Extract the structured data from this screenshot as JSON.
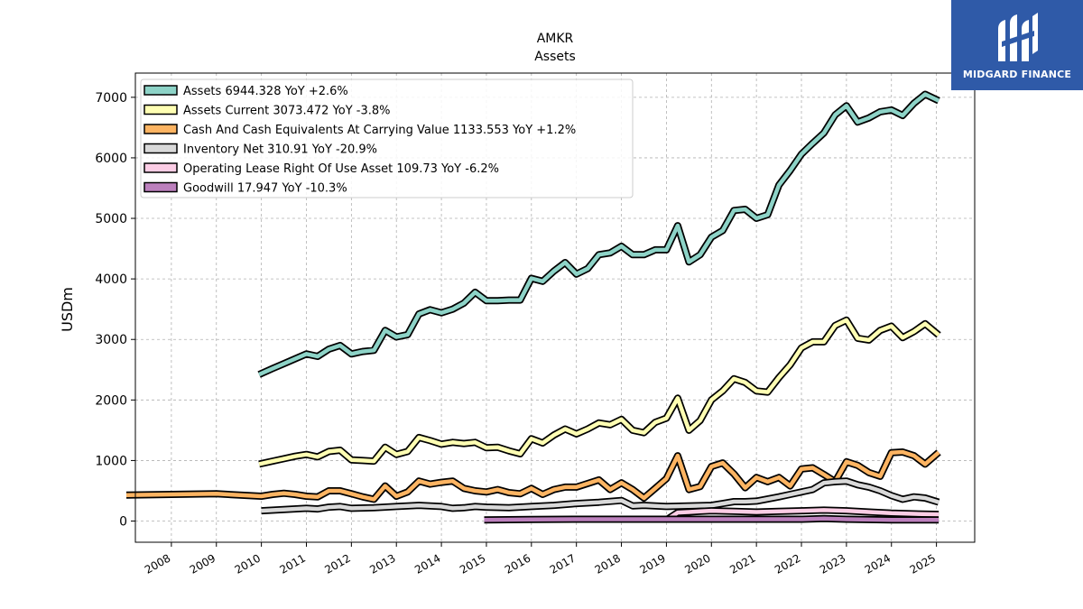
{
  "chart_data": {
    "type": "line",
    "title": "AMKR",
    "subtitle": "Assets",
    "ylabel": "USDm",
    "xlabel": "",
    "ylim": [
      -350,
      7400
    ],
    "xlim": [
      2007.2,
      2025.85
    ],
    "yticks": [
      0,
      1000,
      2000,
      3000,
      4000,
      5000,
      6000,
      7000
    ],
    "xticks": [
      2008,
      2009,
      2010,
      2011,
      2012,
      2013,
      2014,
      2015,
      2016,
      2017,
      2018,
      2019,
      2020,
      2021,
      2022,
      2023,
      2024,
      2025
    ],
    "grid": true,
    "legend_position": "top-left",
    "series": [
      {
        "name": "Assets",
        "legend_label": "Assets  6944.328 YoY +2.6%",
        "color": "#8dd3c7",
        "points": [
          [
            2009.95,
            2420
          ],
          [
            2010.25,
            2520
          ],
          [
            2010.5,
            2600
          ],
          [
            2010.75,
            2680
          ],
          [
            2011.0,
            2760
          ],
          [
            2011.25,
            2720
          ],
          [
            2011.5,
            2840
          ],
          [
            2011.75,
            2900
          ],
          [
            2012.0,
            2760
          ],
          [
            2012.25,
            2800
          ],
          [
            2012.5,
            2820
          ],
          [
            2012.75,
            3150
          ],
          [
            2013.0,
            3040
          ],
          [
            2013.25,
            3080
          ],
          [
            2013.5,
            3420
          ],
          [
            2013.75,
            3490
          ],
          [
            2014.0,
            3440
          ],
          [
            2014.25,
            3500
          ],
          [
            2014.5,
            3600
          ],
          [
            2014.75,
            3780
          ],
          [
            2015.0,
            3640
          ],
          [
            2015.25,
            3640
          ],
          [
            2015.5,
            3650
          ],
          [
            2015.75,
            3650
          ],
          [
            2016.0,
            4010
          ],
          [
            2016.25,
            3960
          ],
          [
            2016.5,
            4130
          ],
          [
            2016.75,
            4270
          ],
          [
            2017.0,
            4080
          ],
          [
            2017.25,
            4170
          ],
          [
            2017.5,
            4400
          ],
          [
            2017.75,
            4430
          ],
          [
            2018.0,
            4540
          ],
          [
            2018.25,
            4400
          ],
          [
            2018.5,
            4400
          ],
          [
            2018.75,
            4480
          ],
          [
            2019.0,
            4480
          ],
          [
            2019.25,
            4880
          ],
          [
            2019.5,
            4280
          ],
          [
            2019.75,
            4400
          ],
          [
            2020.0,
            4690
          ],
          [
            2020.25,
            4800
          ],
          [
            2020.5,
            5130
          ],
          [
            2020.75,
            5150
          ],
          [
            2021.0,
            5000
          ],
          [
            2021.25,
            5060
          ],
          [
            2021.5,
            5550
          ],
          [
            2021.75,
            5790
          ],
          [
            2022.0,
            6060
          ],
          [
            2022.25,
            6240
          ],
          [
            2022.5,
            6410
          ],
          [
            2022.75,
            6710
          ],
          [
            2023.0,
            6860
          ],
          [
            2023.25,
            6590
          ],
          [
            2023.5,
            6660
          ],
          [
            2023.75,
            6760
          ],
          [
            2024.0,
            6790
          ],
          [
            2024.25,
            6700
          ],
          [
            2024.5,
            6900
          ],
          [
            2024.75,
            7050
          ],
          [
            2025.05,
            6944
          ]
        ]
      },
      {
        "name": "Assets Current",
        "legend_label": "Assets Current  3073.472 YoY -3.8%",
        "color": "#ffffb3",
        "points": [
          [
            2009.95,
            940
          ],
          [
            2010.25,
            990
          ],
          [
            2010.5,
            1030
          ],
          [
            2010.75,
            1070
          ],
          [
            2011.0,
            1100
          ],
          [
            2011.25,
            1060
          ],
          [
            2011.5,
            1150
          ],
          [
            2011.75,
            1170
          ],
          [
            2012.0,
            1010
          ],
          [
            2012.25,
            1000
          ],
          [
            2012.5,
            990
          ],
          [
            2012.75,
            1220
          ],
          [
            2013.0,
            1100
          ],
          [
            2013.25,
            1150
          ],
          [
            2013.5,
            1380
          ],
          [
            2013.75,
            1330
          ],
          [
            2014.0,
            1270
          ],
          [
            2014.25,
            1300
          ],
          [
            2014.5,
            1280
          ],
          [
            2014.75,
            1300
          ],
          [
            2015.0,
            1210
          ],
          [
            2015.25,
            1220
          ],
          [
            2015.5,
            1160
          ],
          [
            2015.75,
            1110
          ],
          [
            2016.0,
            1360
          ],
          [
            2016.25,
            1290
          ],
          [
            2016.5,
            1420
          ],
          [
            2016.75,
            1520
          ],
          [
            2017.0,
            1440
          ],
          [
            2017.25,
            1520
          ],
          [
            2017.5,
            1620
          ],
          [
            2017.75,
            1590
          ],
          [
            2018.0,
            1680
          ],
          [
            2018.25,
            1500
          ],
          [
            2018.5,
            1460
          ],
          [
            2018.75,
            1630
          ],
          [
            2019.0,
            1700
          ],
          [
            2019.25,
            2030
          ],
          [
            2019.5,
            1500
          ],
          [
            2019.75,
            1660
          ],
          [
            2020.0,
            2000
          ],
          [
            2020.25,
            2150
          ],
          [
            2020.5,
            2350
          ],
          [
            2020.75,
            2290
          ],
          [
            2021.0,
            2150
          ],
          [
            2021.25,
            2130
          ],
          [
            2021.5,
            2370
          ],
          [
            2021.75,
            2580
          ],
          [
            2022.0,
            2860
          ],
          [
            2022.25,
            2960
          ],
          [
            2022.5,
            2960
          ],
          [
            2022.75,
            3230
          ],
          [
            2023.0,
            3320
          ],
          [
            2023.25,
            3020
          ],
          [
            2023.5,
            2990
          ],
          [
            2023.75,
            3150
          ],
          [
            2024.0,
            3220
          ],
          [
            2024.25,
            3030
          ],
          [
            2024.5,
            3130
          ],
          [
            2024.75,
            3260
          ],
          [
            2025.05,
            3073
          ]
        ]
      },
      {
        "name": "Cash And Cash Equivalents At Carrying Value",
        "legend_label": "Cash And Cash Equivalents At Carrying Value  1133.553 YoY +1.2%",
        "color": "#fdb462",
        "points": [
          [
            2007.0,
            430
          ],
          [
            2008.0,
            440
          ],
          [
            2009.0,
            450
          ],
          [
            2010.0,
            410
          ],
          [
            2010.25,
            440
          ],
          [
            2010.5,
            460
          ],
          [
            2010.75,
            440
          ],
          [
            2011.0,
            410
          ],
          [
            2011.25,
            400
          ],
          [
            2011.5,
            500
          ],
          [
            2011.75,
            500
          ],
          [
            2012.0,
            450
          ],
          [
            2012.25,
            400
          ],
          [
            2012.5,
            360
          ],
          [
            2012.75,
            580
          ],
          [
            2013.0,
            410
          ],
          [
            2013.25,
            480
          ],
          [
            2013.5,
            660
          ],
          [
            2013.75,
            610
          ],
          [
            2014.0,
            640
          ],
          [
            2014.25,
            660
          ],
          [
            2014.5,
            540
          ],
          [
            2014.75,
            500
          ],
          [
            2015.0,
            480
          ],
          [
            2015.25,
            520
          ],
          [
            2015.5,
            470
          ],
          [
            2015.75,
            450
          ],
          [
            2016.0,
            540
          ],
          [
            2016.25,
            440
          ],
          [
            2016.5,
            520
          ],
          [
            2016.75,
            560
          ],
          [
            2017.0,
            560
          ],
          [
            2017.25,
            620
          ],
          [
            2017.5,
            680
          ],
          [
            2017.75,
            520
          ],
          [
            2018.0,
            630
          ],
          [
            2018.25,
            520
          ],
          [
            2018.5,
            380
          ],
          [
            2018.75,
            540
          ],
          [
            2019.0,
            700
          ],
          [
            2019.25,
            1080
          ],
          [
            2019.5,
            520
          ],
          [
            2019.75,
            570
          ],
          [
            2020.0,
            900
          ],
          [
            2020.25,
            960
          ],
          [
            2020.5,
            780
          ],
          [
            2020.75,
            550
          ],
          [
            2021.0,
            720
          ],
          [
            2021.25,
            650
          ],
          [
            2021.5,
            720
          ],
          [
            2021.75,
            580
          ],
          [
            2022.0,
            860
          ],
          [
            2022.25,
            880
          ],
          [
            2022.5,
            770
          ],
          [
            2022.75,
            650
          ],
          [
            2023.0,
            980
          ],
          [
            2023.25,
            920
          ],
          [
            2023.5,
            800
          ],
          [
            2023.75,
            740
          ],
          [
            2024.0,
            1130
          ],
          [
            2024.25,
            1140
          ],
          [
            2024.5,
            1080
          ],
          [
            2024.75,
            940
          ],
          [
            2025.05,
            1134
          ]
        ]
      },
      {
        "name": "Inventory Net",
        "legend_label": "Inventory Net  310.91 YoY -20.9%",
        "color": "#d9d9d9",
        "points": [
          [
            2010.0,
            170
          ],
          [
            2010.5,
            190
          ],
          [
            2011.0,
            210
          ],
          [
            2011.25,
            200
          ],
          [
            2011.5,
            230
          ],
          [
            2011.75,
            240
          ],
          [
            2012.0,
            210
          ],
          [
            2012.5,
            220
          ],
          [
            2013.0,
            240
          ],
          [
            2013.5,
            260
          ],
          [
            2014.0,
            240
          ],
          [
            2014.25,
            210
          ],
          [
            2014.5,
            220
          ],
          [
            2014.75,
            240
          ],
          [
            2015.0,
            230
          ],
          [
            2015.5,
            220
          ],
          [
            2016.0,
            240
          ],
          [
            2016.5,
            260
          ],
          [
            2017.0,
            290
          ],
          [
            2017.5,
            310
          ],
          [
            2018.0,
            340
          ],
          [
            2018.25,
            250
          ],
          [
            2018.5,
            260
          ],
          [
            2018.75,
            250
          ],
          [
            2019.0,
            240
          ],
          [
            2019.5,
            250
          ],
          [
            2020.0,
            260
          ],
          [
            2020.25,
            290
          ],
          [
            2020.5,
            320
          ],
          [
            2020.75,
            320
          ],
          [
            2021.0,
            330
          ],
          [
            2021.5,
            400
          ],
          [
            2021.75,
            440
          ],
          [
            2022.0,
            480
          ],
          [
            2022.25,
            520
          ],
          [
            2022.5,
            630
          ],
          [
            2022.75,
            650
          ],
          [
            2023.0,
            660
          ],
          [
            2023.25,
            600
          ],
          [
            2023.5,
            560
          ],
          [
            2023.75,
            500
          ],
          [
            2024.0,
            420
          ],
          [
            2024.25,
            360
          ],
          [
            2024.5,
            400
          ],
          [
            2024.75,
            380
          ],
          [
            2025.05,
            311
          ]
        ]
      },
      {
        "name": "Operating Lease Right Of Use Asset",
        "legend_label": "Operating Lease Right Of Use Asset  109.73 YoY -6.2%",
        "color": "#fccde5",
        "points": [
          [
            2019.0,
            20
          ],
          [
            2019.25,
            140
          ],
          [
            2019.5,
            150
          ],
          [
            2019.75,
            160
          ],
          [
            2020.0,
            170
          ],
          [
            2020.5,
            160
          ],
          [
            2021.0,
            150
          ],
          [
            2021.5,
            160
          ],
          [
            2022.0,
            170
          ],
          [
            2022.5,
            180
          ],
          [
            2023.0,
            170
          ],
          [
            2023.5,
            150
          ],
          [
            2024.0,
            130
          ],
          [
            2024.5,
            120
          ],
          [
            2025.05,
            110
          ]
        ]
      },
      {
        "name": "Goodwill",
        "legend_label": "Goodwill  17.947 YoY -10.3%",
        "color": "#bc80bd",
        "points": [
          [
            2014.95,
            20
          ],
          [
            2016.0,
            25
          ],
          [
            2017.0,
            30
          ],
          [
            2018.0,
            30
          ],
          [
            2019.0,
            30
          ],
          [
            2020.0,
            30
          ],
          [
            2021.0,
            30
          ],
          [
            2022.0,
            30
          ],
          [
            2022.5,
            40
          ],
          [
            2023.0,
            30
          ],
          [
            2024.0,
            20
          ],
          [
            2025.05,
            18
          ]
        ]
      }
    ]
  },
  "logo": {
    "text": "MIDGARD FINANCE"
  }
}
